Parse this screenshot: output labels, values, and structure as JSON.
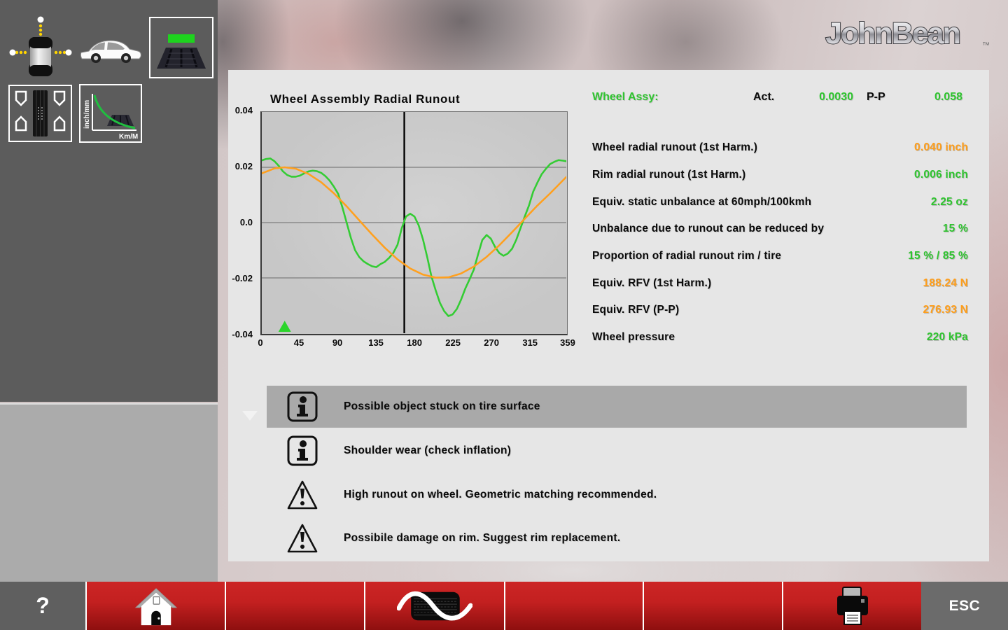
{
  "logo": {
    "text": "JohnBean",
    "tm": "™"
  },
  "sidebar": {
    "tiles": [
      {
        "name": "runout-measure"
      },
      {
        "name": "vehicle"
      },
      {
        "name": "tire-status",
        "selected": true
      },
      {
        "name": "tread-wear",
        "selected": true
      },
      {
        "name": "wear-graph",
        "selected": true,
        "ylabel": "inch/mm",
        "xlabel": "Km/M"
      }
    ]
  },
  "chart_data": {
    "type": "line",
    "title": "Wheel Assembly Radial Runout",
    "xlabel": "",
    "ylabel": "",
    "xlim": [
      0,
      359
    ],
    "ylim": [
      -0.04,
      0.04
    ],
    "x_ticks": [
      "0",
      "45",
      "90",
      "135",
      "180",
      "225",
      "270",
      "315",
      "359"
    ],
    "y_ticks": [
      "0.04",
      "0.02",
      "0.0",
      "-0.02",
      "-0.04"
    ],
    "grid_y": [
      0.02,
      0,
      -0.02
    ],
    "grid": true,
    "legend": "none",
    "marker_line_x": 168,
    "peak_marker_x": 27,
    "peak_marker_color": "#2bd52b",
    "series": [
      {
        "name": "measured-runout",
        "color": "#33cc33",
        "x": [
          0,
          5,
          10,
          15,
          20,
          25,
          30,
          35,
          40,
          45,
          50,
          55,
          60,
          65,
          70,
          75,
          80,
          85,
          90,
          95,
          100,
          105,
          110,
          115,
          120,
          125,
          130,
          135,
          140,
          145,
          150,
          155,
          160,
          165,
          170,
          175,
          180,
          185,
          190,
          195,
          200,
          205,
          210,
          215,
          220,
          225,
          230,
          235,
          240,
          245,
          250,
          255,
          260,
          265,
          270,
          275,
          280,
          285,
          290,
          295,
          300,
          305,
          310,
          315,
          320,
          325,
          330,
          335,
          340,
          345,
          350,
          355,
          359
        ],
        "y": [
          0.0225,
          0.023,
          0.0232,
          0.0222,
          0.0205,
          0.0185,
          0.0172,
          0.0166,
          0.0166,
          0.017,
          0.0178,
          0.0185,
          0.0188,
          0.0186,
          0.018,
          0.0168,
          0.0152,
          0.013,
          0.0104,
          0.0055,
          0.0,
          -0.0055,
          -0.01,
          -0.0125,
          -0.014,
          -0.015,
          -0.0158,
          -0.0161,
          -0.015,
          -0.0142,
          -0.0128,
          -0.011,
          -0.008,
          -0.002,
          0.0022,
          0.0032,
          0.0022,
          -0.001,
          -0.006,
          -0.0125,
          -0.0195,
          -0.0245,
          -0.029,
          -0.032,
          -0.0338,
          -0.0332,
          -0.0312,
          -0.0278,
          -0.0238,
          -0.0205,
          -0.017,
          -0.0115,
          -0.0063,
          -0.0045,
          -0.0058,
          -0.0088,
          -0.011,
          -0.012,
          -0.0112,
          -0.0095,
          -0.0062,
          -0.002,
          0.0022,
          0.0062,
          0.0112,
          0.0145,
          0.0175,
          0.0195,
          0.0212,
          0.022,
          0.0226,
          0.0224,
          0.0222
        ]
      },
      {
        "name": "first-harmonic",
        "color": "#ffa01e",
        "x": [
          0,
          15,
          27,
          40,
          55,
          70,
          85,
          100,
          115,
          130,
          145,
          160,
          175,
          190,
          205,
          220,
          235,
          250,
          265,
          280,
          295,
          310,
          325,
          340,
          359
        ],
        "y": [
          0.0178,
          0.0196,
          0.02,
          0.0195,
          0.0176,
          0.0146,
          0.0106,
          0.0059,
          0.0008,
          -0.0043,
          -0.0091,
          -0.0133,
          -0.0166,
          -0.0188,
          -0.0199,
          -0.0198,
          -0.0184,
          -0.0159,
          -0.0124,
          -0.0082,
          -0.0035,
          0.0014,
          0.0062,
          0.0106,
          0.0165
        ]
      }
    ]
  },
  "results": {
    "header": {
      "label": "Wheel Assy:",
      "act_label": "Act.",
      "act_value": "0.0030",
      "pp_label": "P-P",
      "pp_value": "0.058"
    },
    "rows": [
      {
        "label": "Wheel radial runout (1st Harm.)",
        "value": "0.040 inch",
        "color": "orange"
      },
      {
        "label": "Rim radial runout (1st Harm.)",
        "value": "0.006 inch",
        "color": "green"
      },
      {
        "label": "Equiv. static unbalance at 60mph/100kmh",
        "value": "2.25 oz",
        "color": "green"
      },
      {
        "label": "Unbalance due to runout can be reduced by",
        "value": "15 %",
        "color": "green"
      },
      {
        "label": "Proportion of radial runout rim / tire",
        "value": "15 % / 85 %",
        "color": "green"
      },
      {
        "label": "Equiv. RFV (1st Harm.)",
        "value": "188.24 N",
        "color": "orange"
      },
      {
        "label": "Equiv. RFV (P-P)",
        "value": "276.93 N",
        "color": "orange"
      },
      {
        "label": "Wheel pressure",
        "value": "220 kPa",
        "color": "green"
      }
    ]
  },
  "messages": [
    {
      "icon": "info-icon",
      "text": "Possible object stuck on tire surface",
      "highlighted": true
    },
    {
      "icon": "info-icon",
      "text": "Shoulder wear (check inflation)",
      "highlighted": false
    },
    {
      "icon": "warning-icon",
      "text": "High runout on wheel. Geometric matching recommended.",
      "highlighted": false
    },
    {
      "icon": "warning-icon",
      "text": "Possibile damage on rim. Suggest rim replacement.",
      "highlighted": false
    }
  ],
  "bottom_bar": {
    "help_label": "?",
    "esc_label": "ESC",
    "buttons": [
      "help",
      "home",
      "empty",
      "tire-runout",
      "empty",
      "empty",
      "print",
      "esc"
    ]
  },
  "colors": {
    "green": "#2ec42e",
    "orange": "#ff9e1a",
    "curve_green": "#33cc33",
    "red_button": "#c32020",
    "sidebar_bg": "#5c5c5c",
    "panel_bg": "#e6e6e6",
    "plot_bg": "#c9c9c9",
    "highlight_row": "#a9a9a9"
  }
}
